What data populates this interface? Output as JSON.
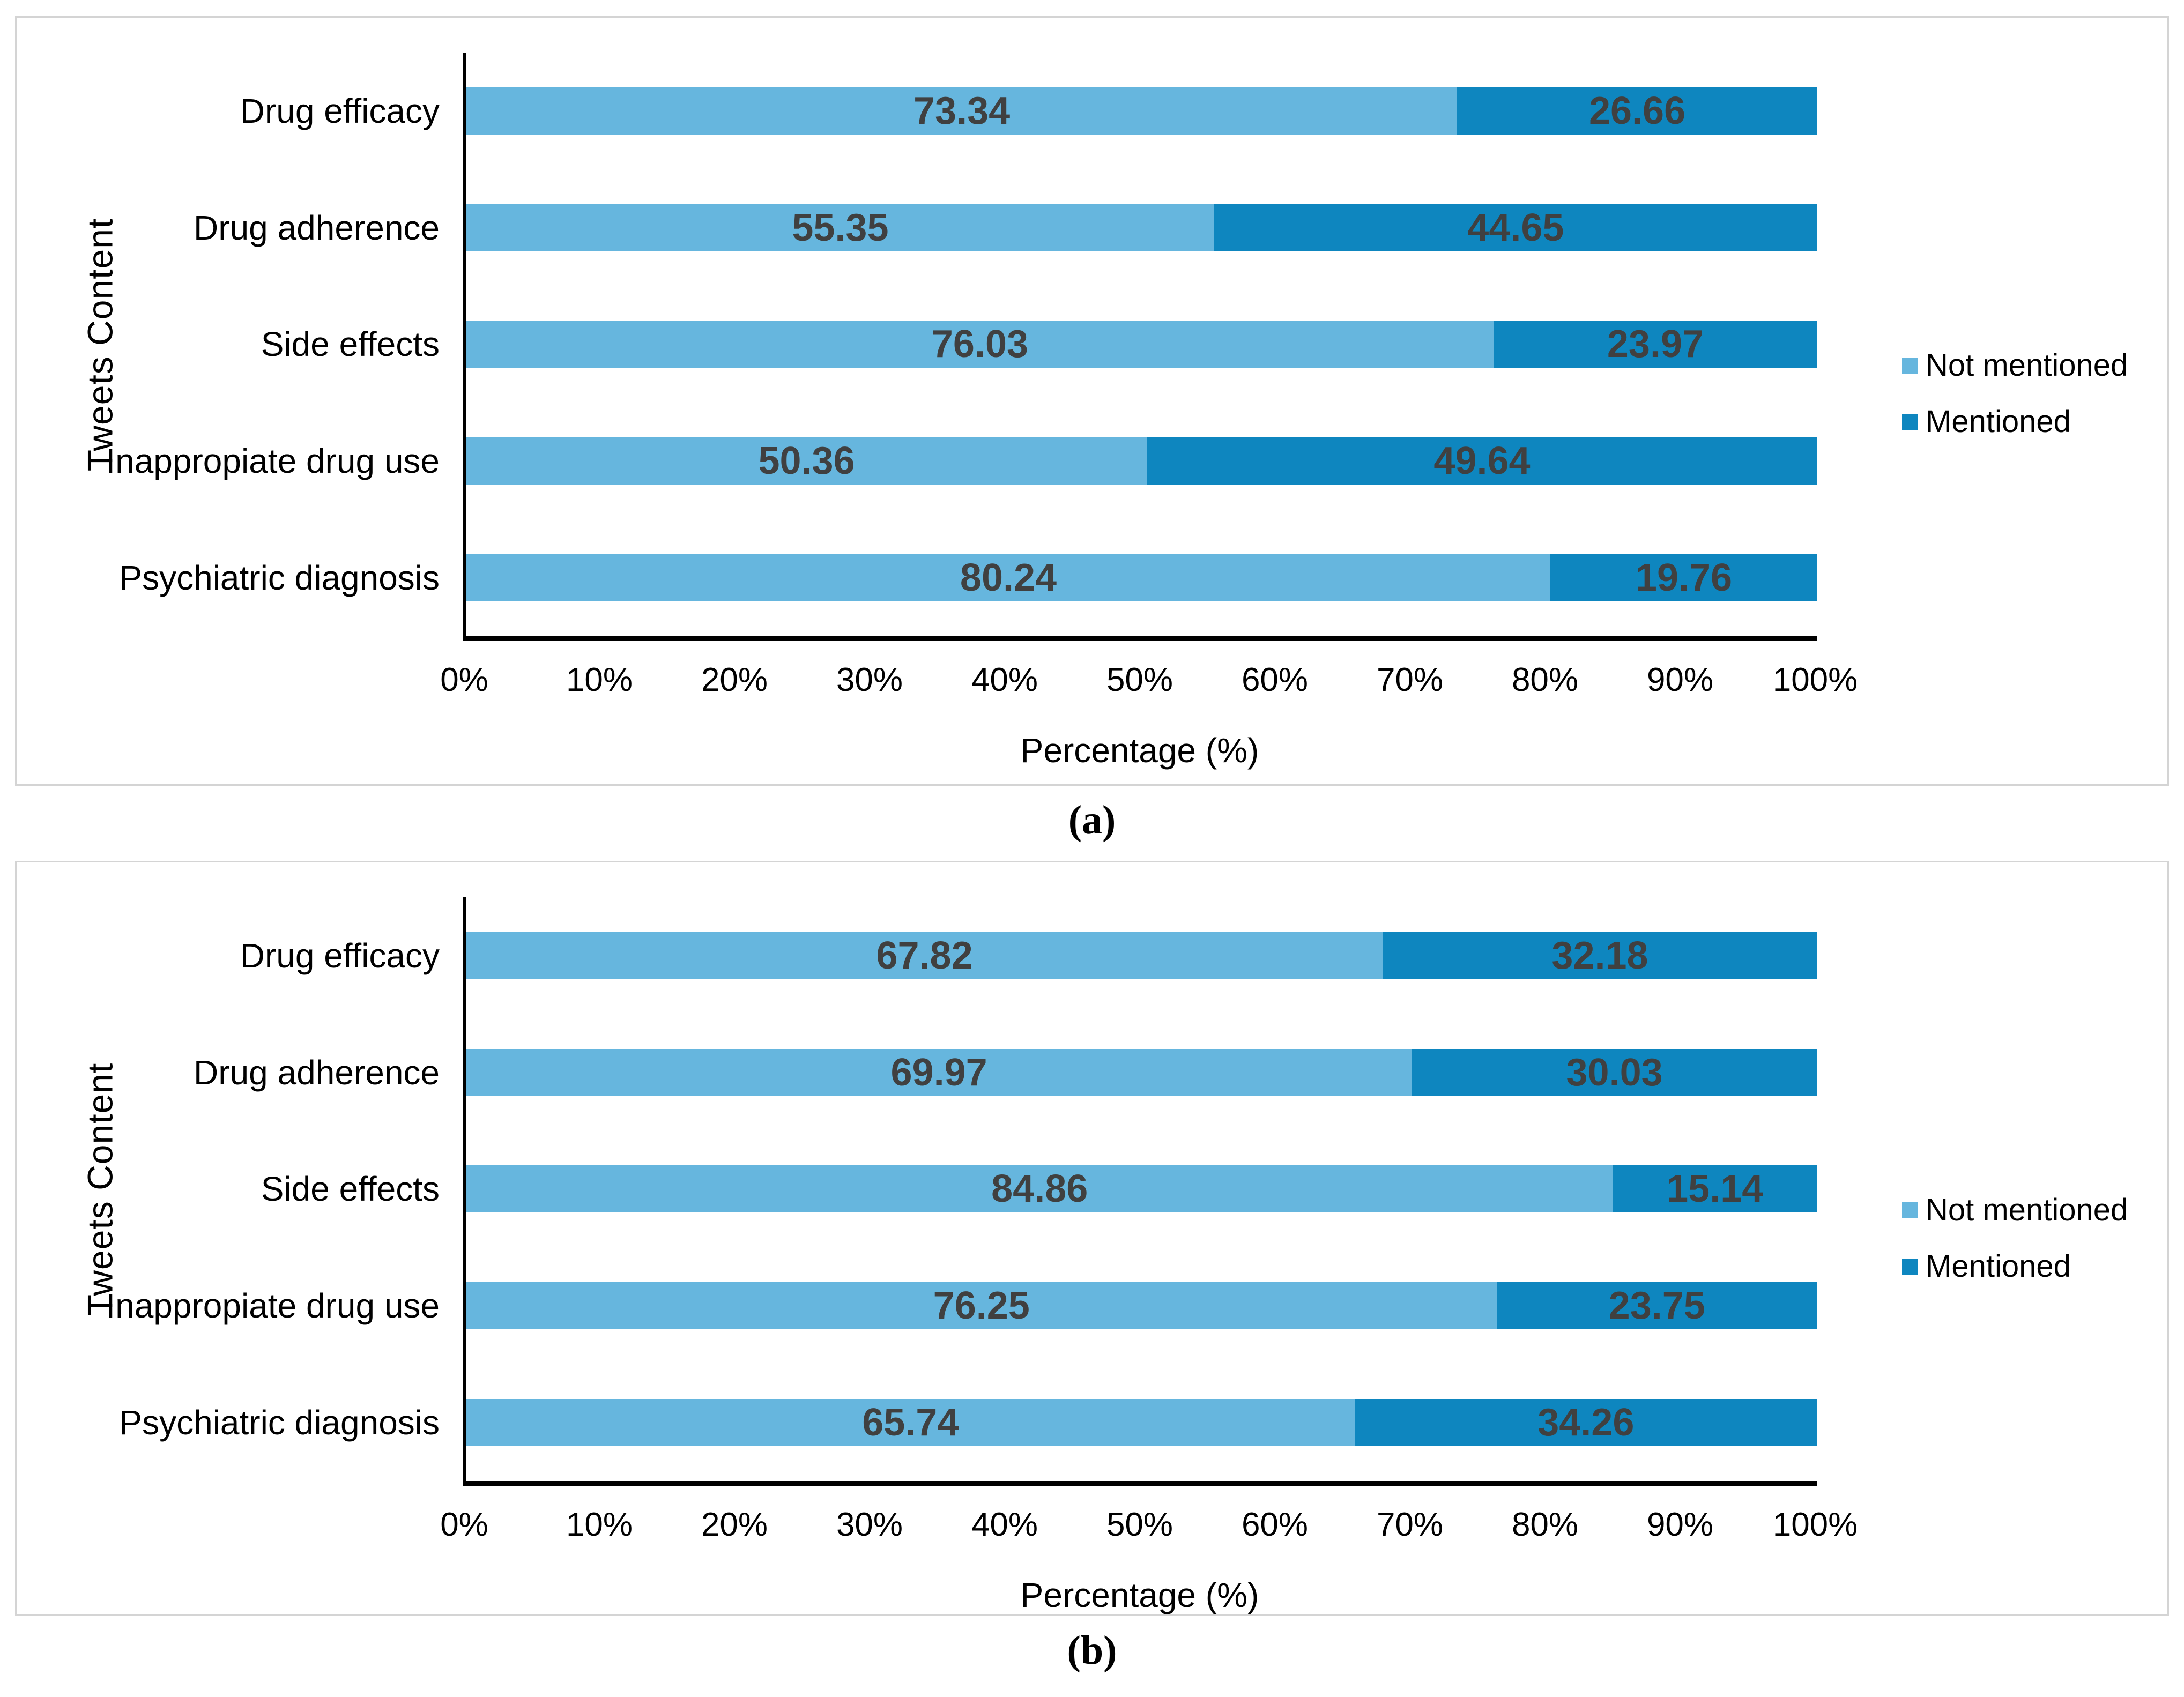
{
  "colors": {
    "not_mentioned": "#66B6DE",
    "mentioned": "#0E86BF",
    "value_label": "#404040",
    "axis_line": "#000000",
    "panel_border": "#D4D4D4"
  },
  "chart_data": [
    {
      "type": "bar",
      "subtype": "stacked-horizontal",
      "title": "(a)",
      "xlabel": "Percentage (%)",
      "ylabel": "Tweets Content",
      "xlim": [
        0,
        100
      ],
      "x_tick_labels": [
        "0%",
        "10%",
        "20%",
        "30%",
        "40%",
        "50%",
        "60%",
        "70%",
        "80%",
        "90%",
        "100%"
      ],
      "grid": false,
      "legend_position": "right",
      "legend": [
        "Not mentioned",
        "Mentioned"
      ],
      "categories": [
        "Drug efficacy",
        "Drug adherence",
        "Side effects",
        "Inappropiate drug use",
        "Psychiatric diagnosis"
      ],
      "series": [
        {
          "name": "Not mentioned",
          "values": [
            73.34,
            55.35,
            76.03,
            50.36,
            80.24
          ]
        },
        {
          "name": "Mentioned",
          "values": [
            26.66,
            44.65,
            23.97,
            49.64,
            19.76
          ]
        }
      ]
    },
    {
      "type": "bar",
      "subtype": "stacked-horizontal",
      "title": "(b)",
      "xlabel": "Percentage (%)",
      "ylabel": "Tweets Content",
      "xlim": [
        0,
        100
      ],
      "x_tick_labels": [
        "0%",
        "10%",
        "20%",
        "30%",
        "40%",
        "50%",
        "60%",
        "70%",
        "80%",
        "90%",
        "100%"
      ],
      "grid": false,
      "legend_position": "right",
      "legend": [
        "Not mentioned",
        "Mentioned"
      ],
      "categories": [
        "Drug efficacy",
        "Drug adherence",
        "Side effects",
        "Inappropiate drug use",
        "Psychiatric diagnosis"
      ],
      "series": [
        {
          "name": "Not mentioned",
          "values": [
            67.82,
            69.97,
            84.86,
            76.25,
            65.74
          ]
        },
        {
          "name": "Mentioned",
          "values": [
            32.18,
            30.03,
            15.14,
            23.75,
            34.26
          ]
        }
      ]
    }
  ]
}
